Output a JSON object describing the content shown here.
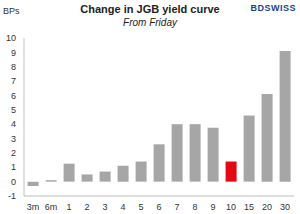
{
  "chart_data": {
    "type": "bar",
    "title": "Change in JGB yield curve",
    "subtitle": "From Friday",
    "ylabel": "BPs",
    "annotations": [
      "BDSWISS"
    ],
    "categories": [
      "3m",
      "6m",
      "1",
      "2",
      "3",
      "4",
      "5",
      "6",
      "7",
      "8",
      "9",
      "10",
      "15",
      "20",
      "30"
    ],
    "values": [
      -0.3,
      0.1,
      1.25,
      0.5,
      0.7,
      1.1,
      1.4,
      2.6,
      4.0,
      4.0,
      3.75,
      1.4,
      4.6,
      6.1,
      9.1
    ],
    "colors": [
      "#a6a6a6",
      "#a6a6a6",
      "#a6a6a6",
      "#a6a6a6",
      "#a6a6a6",
      "#a6a6a6",
      "#a6a6a6",
      "#a6a6a6",
      "#a6a6a6",
      "#a6a6a6",
      "#a6a6a6",
      "#e30613",
      "#a6a6a6",
      "#a6a6a6",
      "#a6a6a6"
    ],
    "ylim": [
      -1,
      10
    ],
    "yticks": [
      -1,
      0,
      1,
      2,
      3,
      4,
      5,
      6,
      7,
      8,
      9,
      10
    ],
    "grid": false
  }
}
